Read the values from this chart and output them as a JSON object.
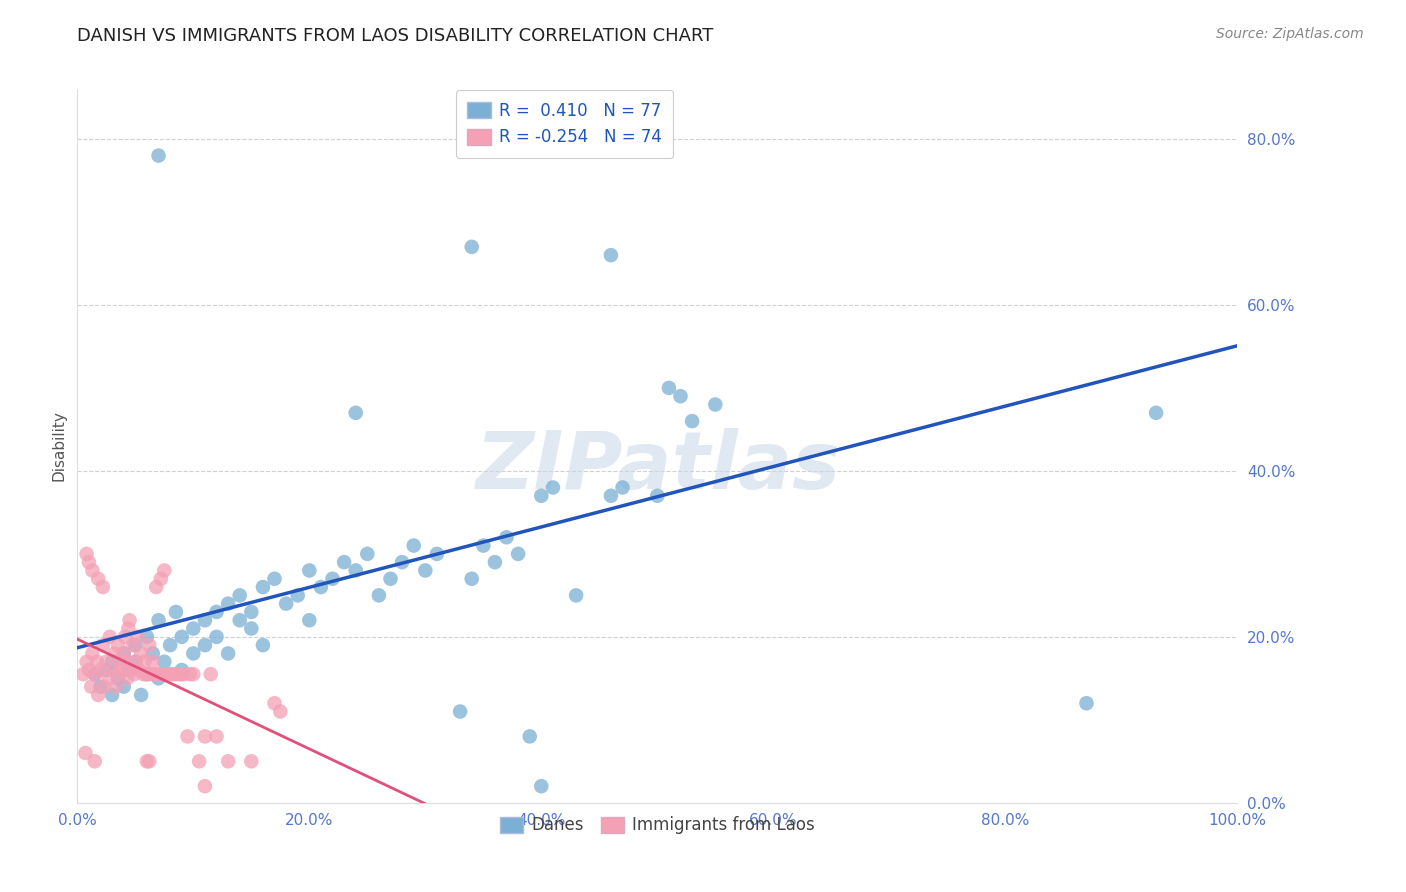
{
  "title": "DANISH VS IMMIGRANTS FROM LAOS DISABILITY CORRELATION CHART",
  "source": "Source: ZipAtlas.com",
  "ylabel": "Disability",
  "xlim": [
    0.0,
    1.0
  ],
  "ylim": [
    0.0,
    0.86
  ],
  "xticks": [
    0.0,
    0.2,
    0.4,
    0.6,
    0.8,
    1.0
  ],
  "xtick_labels": [
    "0.0%",
    "20.0%",
    "40.0%",
    "60.0%",
    "80.0%",
    "100.0%"
  ],
  "yticks": [
    0.0,
    0.2,
    0.4,
    0.6,
    0.8
  ],
  "ytick_labels": [
    "0.0%",
    "20.0%",
    "40.0%",
    "60.0%",
    "80.0%"
  ],
  "danes_color": "#7bafd4",
  "laos_color": "#f4a0b5",
  "danes_line_color": "#2255bb",
  "laos_line_color": "#e0507a",
  "danes_R": 0.41,
  "danes_N": 77,
  "laos_R": -0.254,
  "laos_N": 74,
  "background_color": "#ffffff",
  "grid_color": "#cccccc",
  "tick_color": "#5577cc",
  "danes_scatter": [
    [
      0.015,
      0.155
    ],
    [
      0.02,
      0.14
    ],
    [
      0.025,
      0.16
    ],
    [
      0.03,
      0.13
    ],
    [
      0.03,
      0.17
    ],
    [
      0.035,
      0.15
    ],
    [
      0.04,
      0.18
    ],
    [
      0.04,
      0.14
    ],
    [
      0.045,
      0.16
    ],
    [
      0.05,
      0.19
    ],
    [
      0.05,
      0.17
    ],
    [
      0.055,
      0.13
    ],
    [
      0.06,
      0.155
    ],
    [
      0.06,
      0.2
    ],
    [
      0.065,
      0.18
    ],
    [
      0.07,
      0.15
    ],
    [
      0.07,
      0.22
    ],
    [
      0.075,
      0.17
    ],
    [
      0.08,
      0.19
    ],
    [
      0.085,
      0.23
    ],
    [
      0.09,
      0.2
    ],
    [
      0.09,
      0.16
    ],
    [
      0.1,
      0.21
    ],
    [
      0.1,
      0.18
    ],
    [
      0.11,
      0.22
    ],
    [
      0.11,
      0.19
    ],
    [
      0.12,
      0.23
    ],
    [
      0.12,
      0.2
    ],
    [
      0.13,
      0.24
    ],
    [
      0.13,
      0.18
    ],
    [
      0.14,
      0.22
    ],
    [
      0.14,
      0.25
    ],
    [
      0.15,
      0.21
    ],
    [
      0.15,
      0.23
    ],
    [
      0.16,
      0.26
    ],
    [
      0.16,
      0.19
    ],
    [
      0.17,
      0.27
    ],
    [
      0.18,
      0.24
    ],
    [
      0.19,
      0.25
    ],
    [
      0.2,
      0.22
    ],
    [
      0.2,
      0.28
    ],
    [
      0.21,
      0.26
    ],
    [
      0.22,
      0.27
    ],
    [
      0.23,
      0.29
    ],
    [
      0.24,
      0.28
    ],
    [
      0.25,
      0.3
    ],
    [
      0.26,
      0.25
    ],
    [
      0.27,
      0.27
    ],
    [
      0.28,
      0.29
    ],
    [
      0.29,
      0.31
    ],
    [
      0.3,
      0.28
    ],
    [
      0.31,
      0.3
    ],
    [
      0.33,
      0.11
    ],
    [
      0.34,
      0.27
    ],
    [
      0.35,
      0.31
    ],
    [
      0.36,
      0.29
    ],
    [
      0.37,
      0.32
    ],
    [
      0.38,
      0.3
    ],
    [
      0.4,
      0.37
    ],
    [
      0.41,
      0.38
    ],
    [
      0.43,
      0.25
    ],
    [
      0.46,
      0.37
    ],
    [
      0.47,
      0.38
    ],
    [
      0.5,
      0.37
    ],
    [
      0.51,
      0.5
    ],
    [
      0.52,
      0.49
    ],
    [
      0.53,
      0.46
    ],
    [
      0.55,
      0.48
    ],
    [
      0.34,
      0.67
    ],
    [
      0.46,
      0.66
    ],
    [
      0.24,
      0.47
    ],
    [
      0.07,
      0.78
    ],
    [
      0.39,
      0.08
    ],
    [
      0.87,
      0.12
    ],
    [
      0.93,
      0.47
    ],
    [
      0.4,
      0.02
    ],
    [
      0.4,
      0.85
    ]
  ],
  "laos_scatter": [
    [
      0.005,
      0.155
    ],
    [
      0.008,
      0.17
    ],
    [
      0.01,
      0.16
    ],
    [
      0.012,
      0.14
    ],
    [
      0.013,
      0.18
    ],
    [
      0.015,
      0.155
    ],
    [
      0.017,
      0.17
    ],
    [
      0.018,
      0.13
    ],
    [
      0.02,
      0.16
    ],
    [
      0.022,
      0.19
    ],
    [
      0.023,
      0.14
    ],
    [
      0.025,
      0.17
    ],
    [
      0.027,
      0.15
    ],
    [
      0.028,
      0.2
    ],
    [
      0.03,
      0.16
    ],
    [
      0.032,
      0.18
    ],
    [
      0.033,
      0.14
    ],
    [
      0.035,
      0.19
    ],
    [
      0.036,
      0.155
    ],
    [
      0.037,
      0.17
    ],
    [
      0.038,
      0.16
    ],
    [
      0.04,
      0.18
    ],
    [
      0.041,
      0.2
    ],
    [
      0.042,
      0.17
    ],
    [
      0.043,
      0.15
    ],
    [
      0.044,
      0.21
    ],
    [
      0.045,
      0.22
    ],
    [
      0.046,
      0.16
    ],
    [
      0.048,
      0.19
    ],
    [
      0.049,
      0.155
    ],
    [
      0.05,
      0.17
    ],
    [
      0.052,
      0.2
    ],
    [
      0.053,
      0.16
    ],
    [
      0.055,
      0.18
    ],
    [
      0.057,
      0.155
    ],
    [
      0.058,
      0.17
    ],
    [
      0.06,
      0.155
    ],
    [
      0.062,
      0.19
    ],
    [
      0.064,
      0.155
    ],
    [
      0.065,
      0.17
    ],
    [
      0.067,
      0.155
    ],
    [
      0.068,
      0.26
    ],
    [
      0.07,
      0.155
    ],
    [
      0.072,
      0.27
    ],
    [
      0.073,
      0.155
    ],
    [
      0.075,
      0.28
    ],
    [
      0.077,
      0.155
    ],
    [
      0.08,
      0.155
    ],
    [
      0.082,
      0.155
    ],
    [
      0.085,
      0.155
    ],
    [
      0.087,
      0.155
    ],
    [
      0.09,
      0.155
    ],
    [
      0.092,
      0.155
    ],
    [
      0.095,
      0.08
    ],
    [
      0.097,
      0.155
    ],
    [
      0.1,
      0.155
    ],
    [
      0.105,
      0.05
    ],
    [
      0.11,
      0.08
    ],
    [
      0.115,
      0.155
    ],
    [
      0.12,
      0.08
    ],
    [
      0.13,
      0.05
    ],
    [
      0.15,
      0.05
    ],
    [
      0.17,
      0.12
    ],
    [
      0.175,
      0.11
    ],
    [
      0.008,
      0.3
    ],
    [
      0.01,
      0.29
    ],
    [
      0.013,
      0.28
    ],
    [
      0.018,
      0.27
    ],
    [
      0.022,
      0.26
    ],
    [
      0.007,
      0.06
    ],
    [
      0.015,
      0.05
    ],
    [
      0.06,
      0.05
    ],
    [
      0.062,
      0.05
    ],
    [
      0.11,
      0.02
    ]
  ]
}
